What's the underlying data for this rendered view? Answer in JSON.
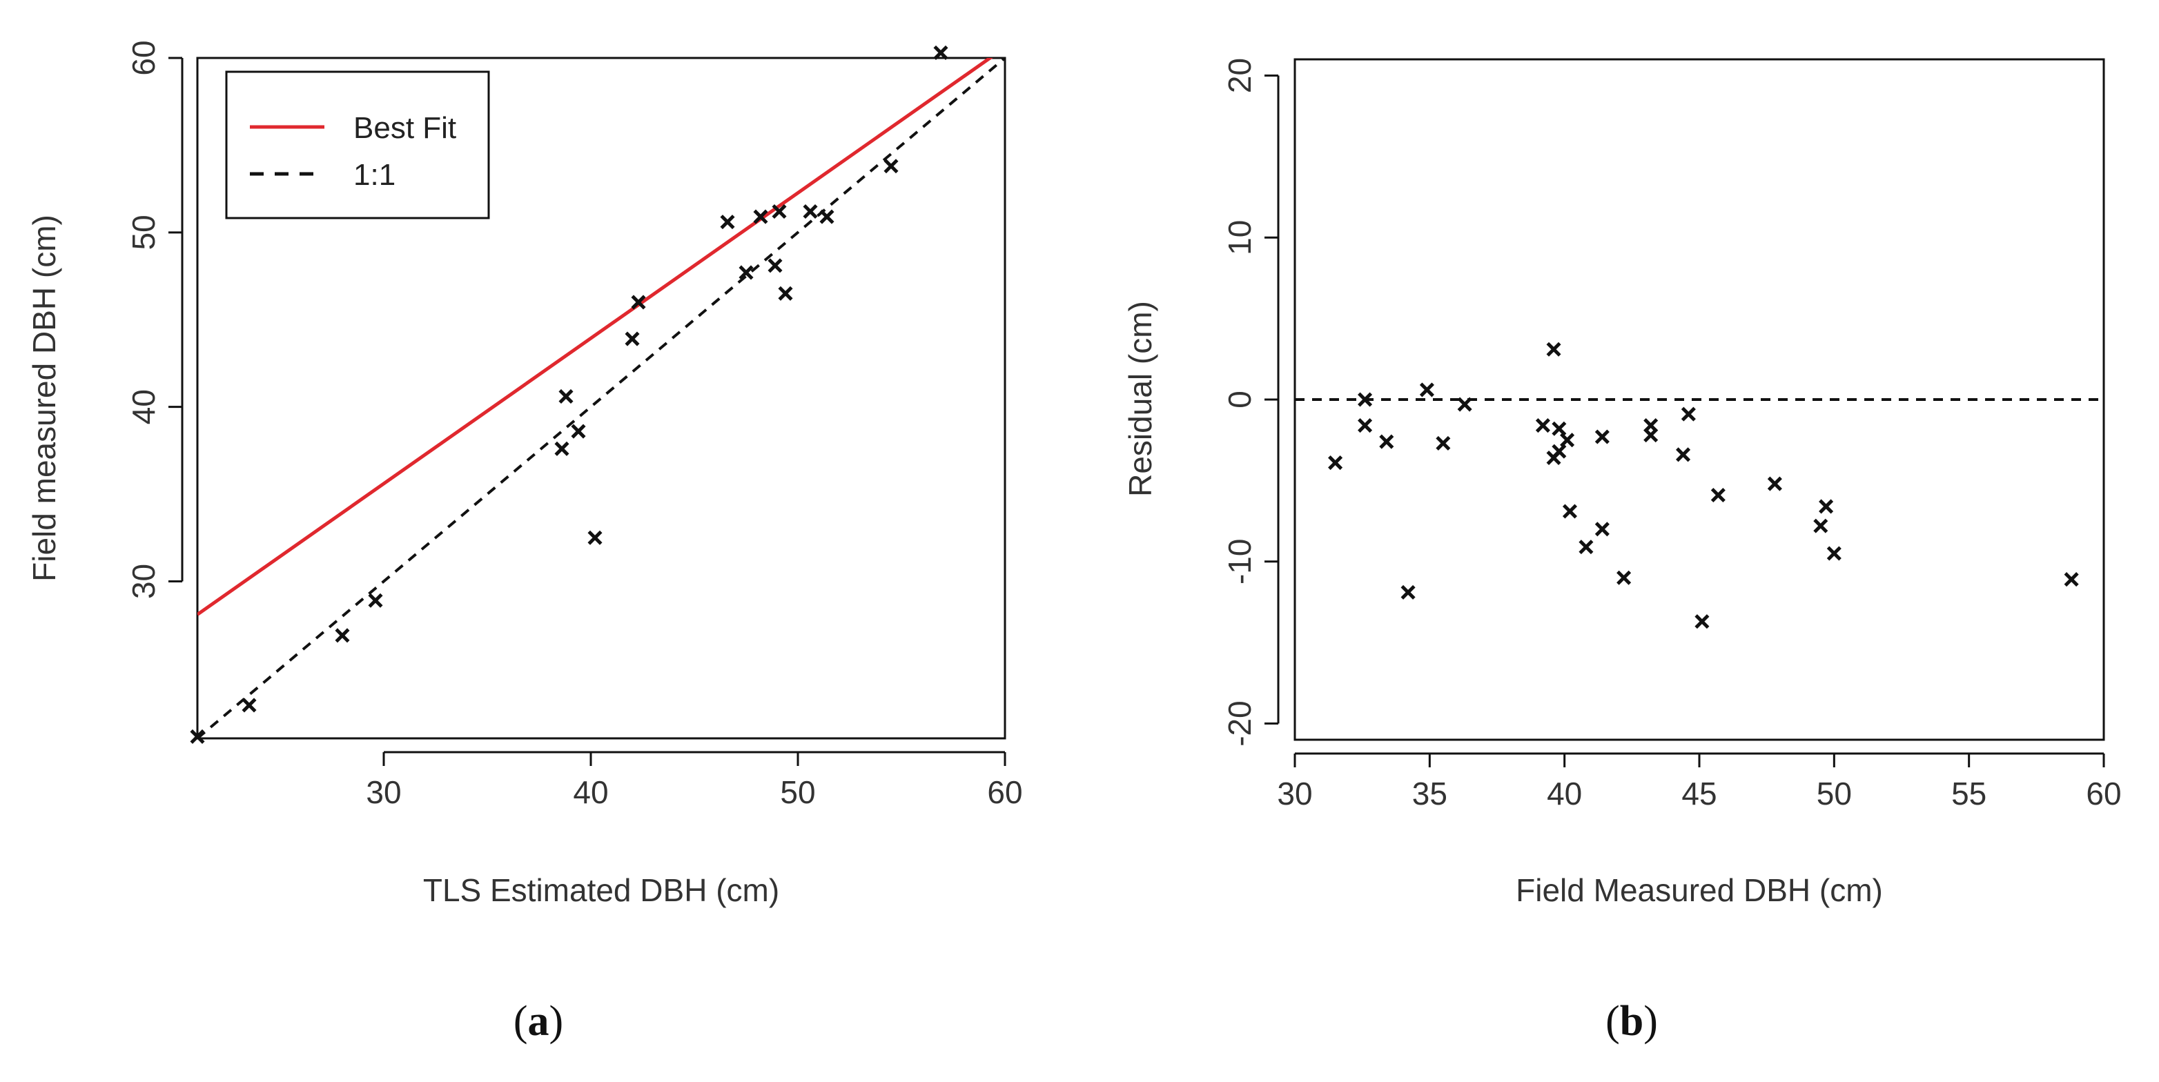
{
  "chart_data": [
    {
      "type": "scatter",
      "panel_label": {
        "open": "(",
        "letter": "a",
        "close": ")"
      },
      "xlabel": "TLS Estimated DBH (cm)",
      "ylabel": "Field measured DBH (cm)",
      "xlim": [
        21,
        60
      ],
      "ylim": [
        21,
        60
      ],
      "xticks": [
        30,
        40,
        50,
        60
      ],
      "yticks": [
        30,
        40,
        50,
        60
      ],
      "legend": {
        "position": "top-left",
        "entries": [
          {
            "label": "Best Fit",
            "style": "solid",
            "color": "#e0282e"
          },
          {
            "label": "1:1",
            "style": "dashed",
            "color": "#111111"
          }
        ]
      },
      "lines": [
        {
          "name": "Best Fit",
          "style": "solid",
          "color": "#e0282e",
          "x": [
            21,
            60
          ],
          "y": [
            28.1,
            60.6
          ]
        },
        {
          "name": "1:1",
          "style": "dashed",
          "color": "#111111",
          "x": [
            21,
            60
          ],
          "y": [
            21,
            60
          ]
        }
      ],
      "points": [
        {
          "x": 21.0,
          "y": 21.1
        },
        {
          "x": 23.5,
          "y": 22.9
        },
        {
          "x": 28.0,
          "y": 26.9
        },
        {
          "x": 29.6,
          "y": 28.9
        },
        {
          "x": 38.6,
          "y": 37.6
        },
        {
          "x": 38.8,
          "y": 40.6
        },
        {
          "x": 39.4,
          "y": 38.6
        },
        {
          "x": 40.2,
          "y": 32.5
        },
        {
          "x": 42.0,
          "y": 43.9
        },
        {
          "x": 42.3,
          "y": 46.0
        },
        {
          "x": 46.6,
          "y": 50.6
        },
        {
          "x": 47.5,
          "y": 47.7
        },
        {
          "x": 48.2,
          "y": 50.9
        },
        {
          "x": 48.9,
          "y": 48.1
        },
        {
          "x": 49.1,
          "y": 51.2
        },
        {
          "x": 49.4,
          "y": 46.5
        },
        {
          "x": 50.6,
          "y": 51.2
        },
        {
          "x": 51.4,
          "y": 50.9
        },
        {
          "x": 54.5,
          "y": 53.8
        },
        {
          "x": 56.9,
          "y": 60.3
        }
      ]
    },
    {
      "type": "scatter",
      "panel_label": {
        "open": "(",
        "letter": "b",
        "close": ")"
      },
      "xlabel": "Field Measured DBH (cm)",
      "ylabel": "Residual (cm)",
      "xlim": [
        30,
        60
      ],
      "ylim": [
        -21,
        21
      ],
      "xticks": [
        30,
        35,
        40,
        45,
        50,
        55,
        60
      ],
      "yticks": [
        -20,
        -10,
        0,
        10,
        20
      ],
      "lines": [
        {
          "name": "zero",
          "style": "dashed",
          "color": "#111111",
          "x": [
            30,
            60
          ],
          "y": [
            0,
            0
          ]
        }
      ],
      "points": [
        {
          "x": 31.5,
          "y": -3.9
        },
        {
          "x": 32.6,
          "y": 0.0
        },
        {
          "x": 32.6,
          "y": -1.6
        },
        {
          "x": 33.4,
          "y": -2.6
        },
        {
          "x": 34.2,
          "y": -11.9
        },
        {
          "x": 34.9,
          "y": 0.6
        },
        {
          "x": 35.5,
          "y": -2.7
        },
        {
          "x": 36.3,
          "y": -0.3
        },
        {
          "x": 39.2,
          "y": -1.6
        },
        {
          "x": 39.6,
          "y": 3.1
        },
        {
          "x": 39.6,
          "y": -3.6
        },
        {
          "x": 39.8,
          "y": -1.8
        },
        {
          "x": 39.8,
          "y": -3.2
        },
        {
          "x": 40.1,
          "y": -2.5
        },
        {
          "x": 40.2,
          "y": -6.9
        },
        {
          "x": 40.8,
          "y": -9.1
        },
        {
          "x": 41.4,
          "y": -2.3
        },
        {
          "x": 41.4,
          "y": -8.0
        },
        {
          "x": 42.2,
          "y": -11.0
        },
        {
          "x": 43.2,
          "y": -1.6
        },
        {
          "x": 43.2,
          "y": -2.2
        },
        {
          "x": 44.4,
          "y": -3.4
        },
        {
          "x": 44.6,
          "y": -0.9
        },
        {
          "x": 45.1,
          "y": -13.7
        },
        {
          "x": 45.7,
          "y": -5.9
        },
        {
          "x": 47.8,
          "y": -5.2
        },
        {
          "x": 49.5,
          "y": -7.8
        },
        {
          "x": 49.7,
          "y": -6.6
        },
        {
          "x": 50.0,
          "y": -9.5
        },
        {
          "x": 58.8,
          "y": -11.1
        }
      ]
    }
  ]
}
